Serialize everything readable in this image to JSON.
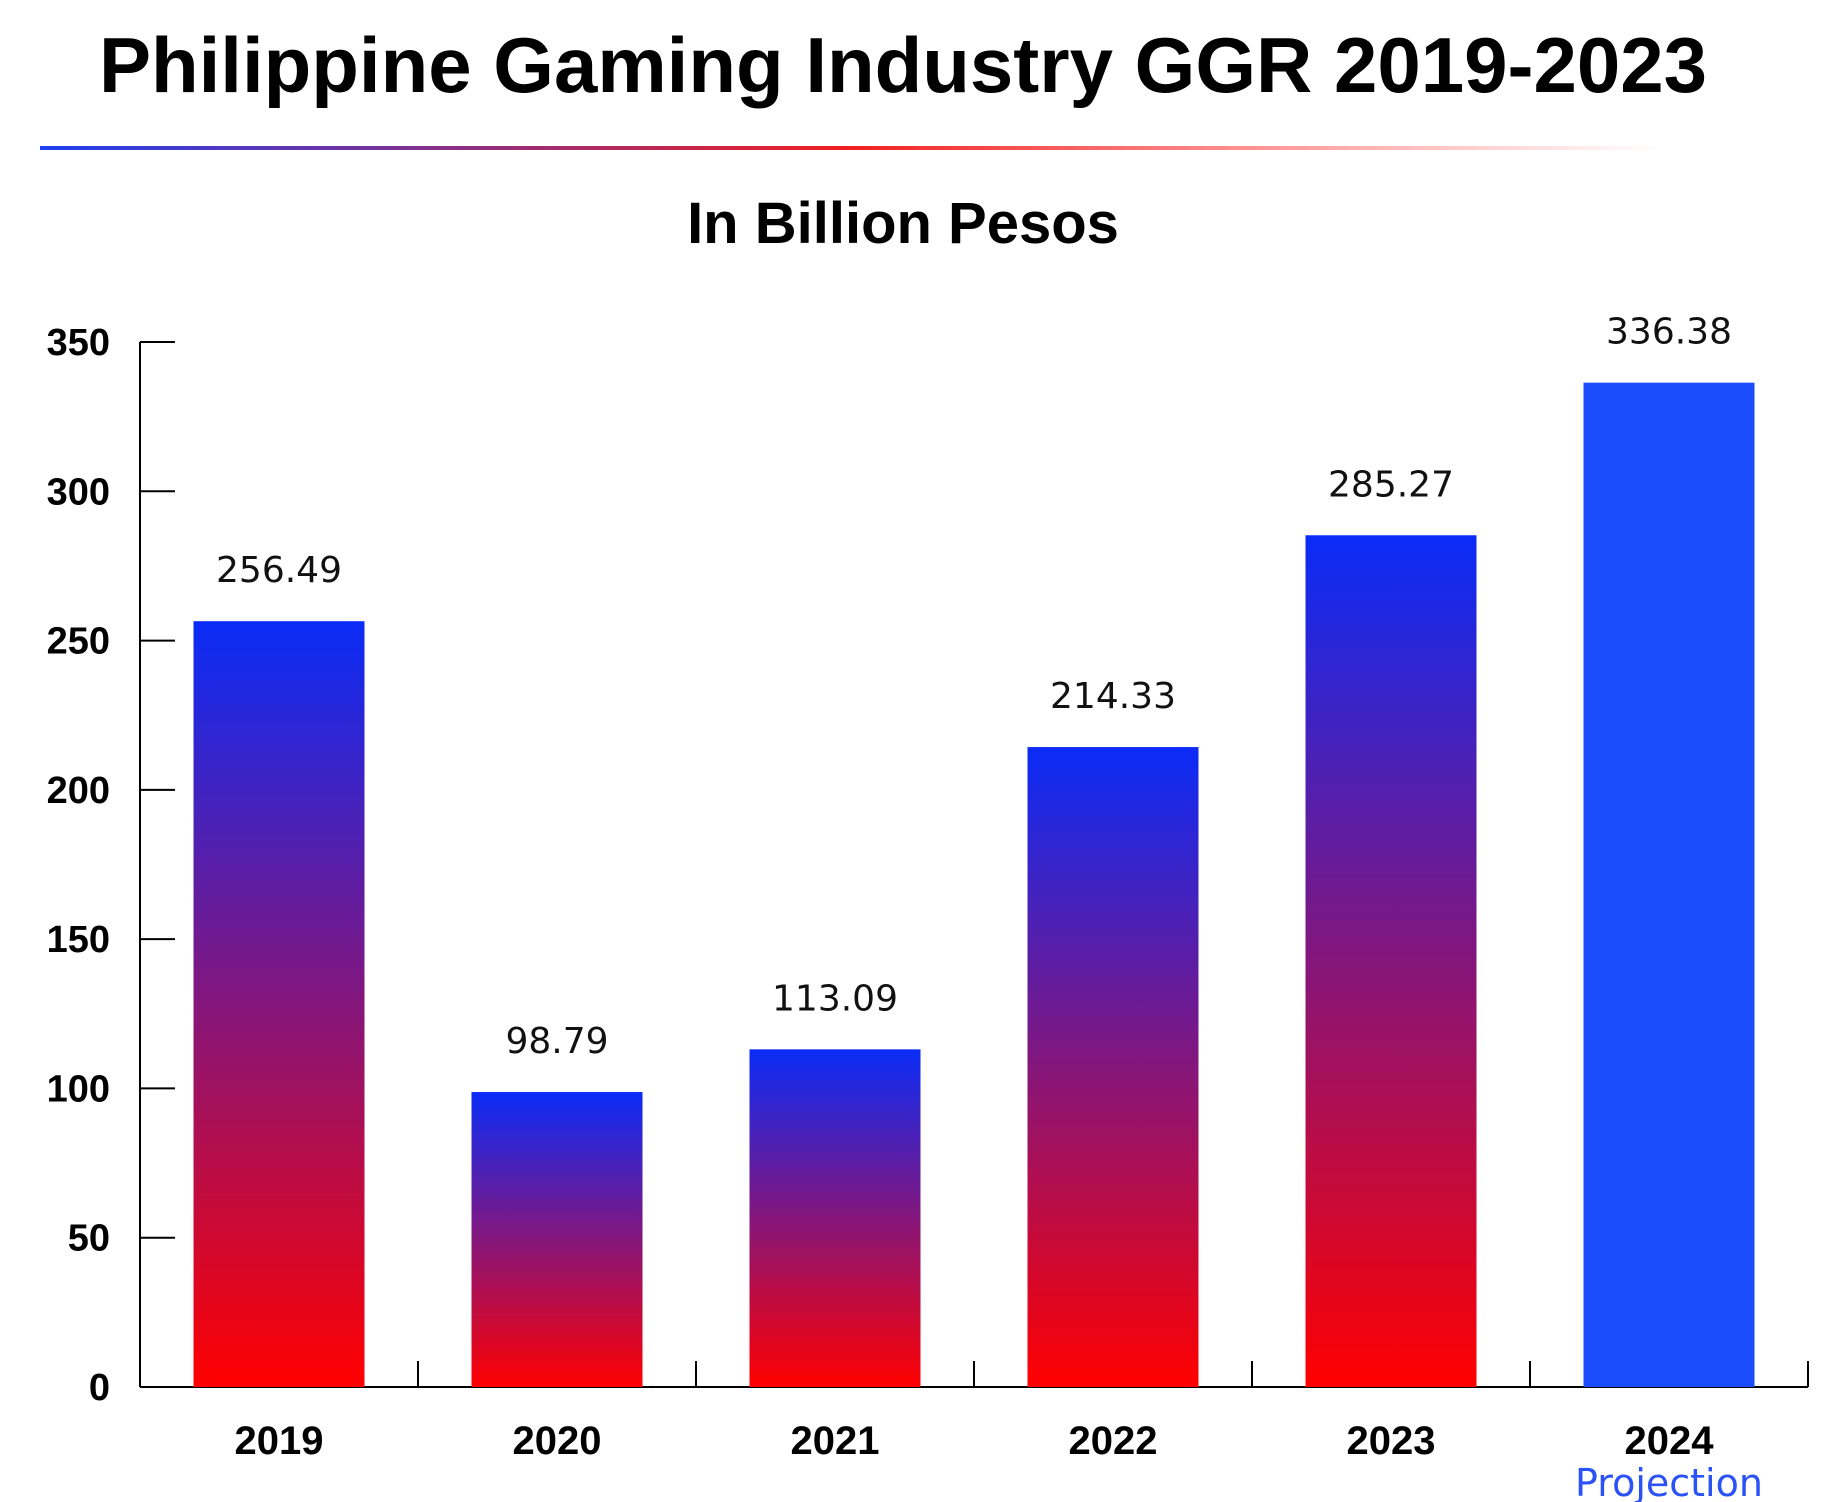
{
  "chart_data": {
    "type": "bar",
    "title": "Philippine Gaming Industry GGR 2019-2023",
    "subtitle": "In Billion Pesos",
    "categories": [
      "2019",
      "2020",
      "2021",
      "2022",
      "2023",
      "2024"
    ],
    "values": [
      256.49,
      98.79,
      113.09,
      214.33,
      285.27,
      336.38
    ],
    "value_labels": [
      "256.49",
      "98.79",
      "113.09",
      "214.33",
      "285.27",
      "336.38"
    ],
    "category_notes": [
      "",
      "",
      "",
      "",
      "",
      "Projection"
    ],
    "ylim": [
      0,
      350
    ],
    "yticks": [
      0,
      50,
      100,
      150,
      200,
      250,
      300,
      350
    ],
    "xlabel": "",
    "ylabel": "",
    "grid": false,
    "legend": "none",
    "colors": {
      "gradient_top": "#0a2cf7",
      "gradient_bottom": "#ff0000",
      "projection_bar": "#1b4dfc",
      "projection_label": "#2b52f5",
      "axis": "#000000"
    }
  }
}
